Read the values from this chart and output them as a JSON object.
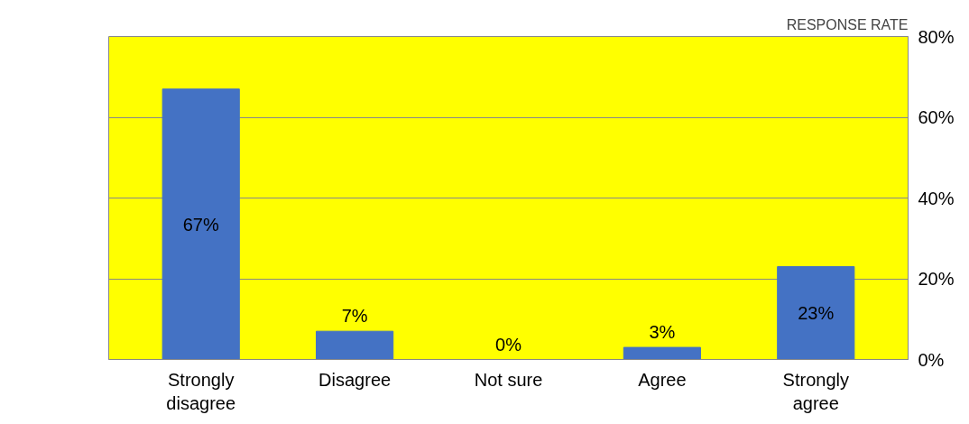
{
  "chart_data": {
    "type": "bar",
    "ylabel": "RESPONSE RATE",
    "categories": [
      "Strongly disagree",
      "Disagree",
      "Not sure",
      "Agree",
      "Strongly agree"
    ],
    "values": [
      67,
      7,
      0,
      3,
      23
    ],
    "color": "#4472c4",
    "value_labels": [
      "67%",
      "7%",
      "0%",
      "3%",
      "23%"
    ],
    "ylim": [
      0,
      80
    ],
    "yticks": [
      {
        "value": 0,
        "label": "0%"
      },
      {
        "value": 20,
        "label": "20%"
      },
      {
        "value": 40,
        "label": "40%"
      },
      {
        "value": 60,
        "label": "60%"
      },
      {
        "value": 80,
        "label": "80%"
      }
    ],
    "grid": "y"
  }
}
